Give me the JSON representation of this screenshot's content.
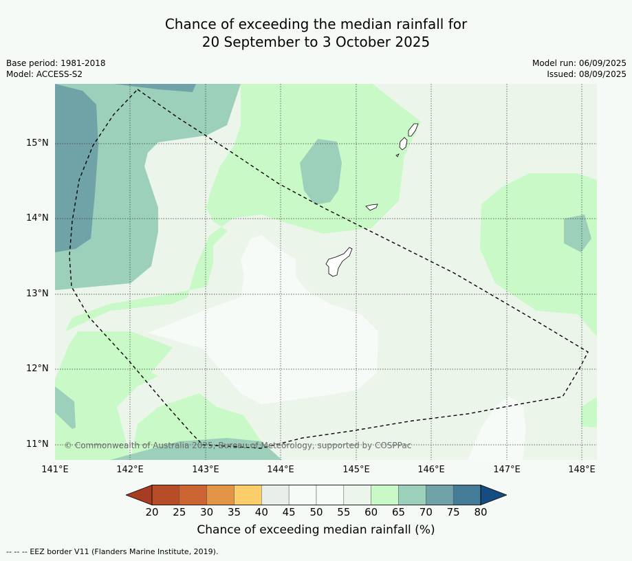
{
  "title_line1": "Chance of exceeding the median rainfall for",
  "title_line2": "20 September to 3 October 2025",
  "base_period": "Base period: 1981-2018",
  "model": "Model: ACCESS-S2",
  "model_run": "Model run: 06/09/2025",
  "issued": "Issued: 08/09/2025",
  "lat_labels": [
    "15°N",
    "14°N",
    "13°N",
    "12°N",
    "11°N"
  ],
  "lon_labels": [
    "141°E",
    "142°E",
    "143°E",
    "144°E",
    "145°E",
    "146°E",
    "147°E",
    "148°E"
  ],
  "copyright": "© Commonwealth of Australia 2025, Bureau of Meteorology, supported by COSPPac",
  "colorbar": {
    "ticks": [
      "20",
      "25",
      "30",
      "35",
      "40",
      "45",
      "50",
      "55",
      "60",
      "65",
      "70",
      "75",
      "80"
    ],
    "colors": [
      "#a63d23",
      "#b54d27",
      "#cc6333",
      "#e39546",
      "#fdcd69",
      "#e9ede7",
      "#f7fbf8",
      "#f5fbf5",
      "#ebf5ea",
      "#caf9c8",
      "#9dd0bb",
      "#6fa3a8",
      "#447c98",
      "#174c80"
    ],
    "label": "Chance of exceeding median rainfall (%)"
  },
  "legend": {
    "eez_symbol": "-- -- --",
    "eez_text": "EEZ border V11 (Flanders Marine Institute, 2019)."
  },
  "map_colors": {
    "base_55_60": "#ebf5ea",
    "band_60_65": "#caf9c8",
    "band_65_70": "#9dd0bb",
    "band_70_75": "#6fa3a8",
    "band_50_55": "#f7fbf8"
  }
}
